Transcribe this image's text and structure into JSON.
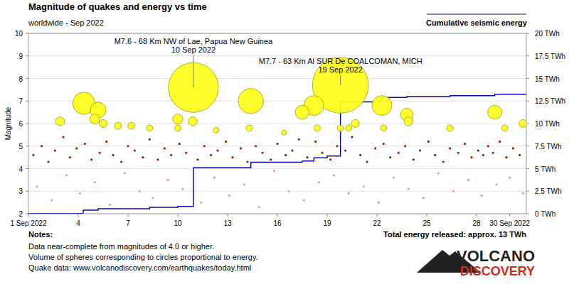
{
  "chart_data": {
    "type": "scatter",
    "title": "Magnitude of quakes and energy vs time",
    "subtitle": "worldwide - Sep 2022",
    "y_label": "Magnitude",
    "xlim": [
      1,
      31
    ],
    "xticks": [
      {
        "value": 1,
        "label": "1 Sep 2022"
      },
      4,
      7,
      10,
      13,
      16,
      19,
      22,
      25,
      28,
      {
        "value": 30,
        "label": "30 Sep 2022"
      }
    ],
    "ylim": [
      2,
      10
    ],
    "yticks": [
      2,
      3,
      4,
      5,
      6,
      7,
      8,
      9,
      10
    ],
    "y2lim": [
      0,
      20
    ],
    "y2ticks": [
      {
        "value": 0,
        "label": "0 TWh"
      },
      {
        "value": 2.5,
        "label": "2.5 TWh"
      },
      {
        "value": 5,
        "label": "5 TWh"
      },
      {
        "value": 7.5,
        "label": "7.5 TWh"
      },
      {
        "value": 10,
        "label": "10 TWh"
      },
      {
        "value": 12.5,
        "label": "12.5 TWh"
      },
      {
        "value": 15,
        "label": "15 TWh"
      },
      {
        "value": 17.5,
        "label": "17.5 TWh"
      },
      {
        "value": 20,
        "label": "20 TWh"
      }
    ],
    "grid": true,
    "legend": "top-right",
    "series": [
      {
        "type": "scatter",
        "marker": "circle",
        "color": "#ffff1a",
        "x": [
          2.9,
          4.34,
          5.0,
          5.2,
          5.5,
          6.4,
          7.2,
          8.3,
          10.0,
          10.0,
          10.94,
          10.9,
          12.3,
          14.3,
          14.4,
          16.4,
          17.5,
          18.2,
          18.4,
          19.8,
          19.8,
          20.3,
          20.7,
          22.3,
          22.4,
          23.8,
          23.9,
          26.4,
          29.1,
          29.7,
          30.8
        ],
        "values": [
          6.1,
          6.9,
          6.2,
          6.6,
          6.0,
          5.9,
          5.9,
          5.8,
          6.2,
          5.8,
          7.6,
          6.1,
          5.7,
          5.8,
          7.0,
          5.6,
          6.5,
          6.8,
          5.8,
          7.7,
          5.8,
          5.8,
          6.0,
          6.8,
          5.8,
          6.4,
          6.1,
          5.8,
          6.5,
          5.8,
          6.0
        ],
        "sizes": [
          0.03,
          0.48,
          0.043,
          0.17,
          0.021,
          0.015,
          0.015,
          0.011,
          0.043,
          0.011,
          5.38,
          0.03,
          0.0076,
          0.011,
          0.68,
          0.0054,
          0.12,
          0.34,
          0.011,
          7.6,
          0.011,
          0.011,
          0.021,
          0.34,
          0.011,
          0.085,
          0.03,
          0.011,
          0.12,
          0.011,
          0.021
        ]
      },
      {
        "type": "scatter",
        "marker": "dot",
        "color": "#8b2000",
        "x": [
          1.3,
          1.8,
          2.2,
          2.6,
          3.1,
          3.5,
          3.9,
          4.4,
          4.8,
          5.3,
          5.7,
          6.1,
          6.6,
          7.0,
          7.4,
          7.9,
          8.3,
          8.8,
          9.2,
          9.6,
          10.1,
          10.5,
          11.2,
          11.6,
          12.0,
          12.4,
          12.9,
          13.3,
          13.8,
          14.2,
          14.7,
          15.1,
          15.6,
          16.0,
          16.5,
          16.9,
          17.3,
          17.8,
          18.3,
          18.7,
          19.2,
          19.6,
          20.1,
          20.5,
          21.0,
          21.4,
          21.9,
          22.4,
          22.8,
          23.3,
          23.7,
          24.2,
          24.6,
          25.1,
          25.5,
          26.0,
          26.4,
          26.9,
          27.3,
          27.7,
          28.1,
          28.4,
          28.7,
          29.0,
          29.4,
          29.8,
          30.2,
          30.6
        ],
        "values": [
          4.6,
          5.0,
          4.3,
          4.8,
          5.4,
          4.5,
          4.9,
          5.1,
          4.4,
          4.7,
          5.2,
          4.6,
          4.3,
          5.0,
          4.8,
          4.5,
          5.3,
          4.4,
          4.9,
          4.6,
          5.1,
          4.7,
          4.4,
          5.0,
          4.6,
          4.8,
          5.2,
          4.5,
          4.9,
          4.3,
          5.0,
          4.7,
          4.4,
          5.1,
          4.6,
          4.8,
          5.3,
          4.5,
          5.2,
          4.7,
          4.4,
          5.0,
          4.8,
          5.4,
          4.6,
          4.3,
          4.9,
          5.1,
          4.5,
          4.7,
          5.0,
          4.4,
          4.8,
          5.2,
          4.6,
          4.3,
          4.9,
          4.7,
          5.1,
          4.5,
          4.8,
          4.6,
          5.0,
          4.7,
          5.2,
          4.5,
          4.9,
          4.6
        ]
      },
      {
        "type": "scatter",
        "marker": "dot",
        "color": "#e3a08c",
        "x": [
          1.5,
          2.4,
          3.3,
          4.1,
          5.0,
          5.9,
          6.8,
          7.7,
          8.5,
          9.4,
          10.3,
          11.4,
          12.2,
          13.1,
          14.0,
          14.9,
          15.8,
          16.7,
          17.6,
          18.5,
          19.4,
          20.3,
          21.2,
          22.1,
          23.0,
          23.9,
          24.8,
          25.7,
          26.6,
          27.5,
          28.3,
          29.2,
          30.0,
          30.8
        ],
        "values": [
          3.2,
          2.6,
          3.7,
          2.9,
          3.4,
          2.4,
          3.8,
          3.0,
          2.7,
          3.5,
          3.1,
          2.5,
          3.6,
          2.8,
          3.3,
          2.3,
          3.9,
          3.0,
          2.6,
          3.4,
          3.7,
          2.9,
          3.2,
          2.5,
          3.6,
          3.1,
          2.7,
          3.8,
          3.0,
          3.5,
          2.8,
          3.3,
          3.6,
          2.9
        ]
      },
      {
        "type": "line",
        "line_style": "step",
        "axis": "y2",
        "name": "Cumulative seismic energy",
        "color": "#0a0a9c",
        "x": [
          1,
          4.3,
          5.2,
          8.3,
          10.0,
          10.94,
          14.4,
          17.5,
          18.2,
          19.0,
          19.8,
          22.3,
          23.8,
          26.4,
          29.1,
          31
        ],
        "values": [
          0,
          0.4,
          0.55,
          0.7,
          0.8,
          5.1,
          5.7,
          5.85,
          6.2,
          6.4,
          12.4,
          12.9,
          13.0,
          13.1,
          13.25,
          13.3
        ]
      }
    ],
    "annotations": [
      {
        "text": "M7.6 - 68 Km NW of Lae, Papua New Guinea",
        "date": "10 Sep 2022",
        "x": 10.94,
        "y": 7.6
      },
      {
        "text": "M7.7 - 63 Km Al SUR De COALCOMAN, MICH",
        "date": "19 Sep 2022",
        "x": 19.8,
        "y": 7.7
      }
    ],
    "total_energy": "Total energy released: approx. 13 TWh",
    "notes_title": "Notes:",
    "notes": [
      "Data near-complete from magnitudes of 4.0 or higher.",
      "Volume of spheres corresponding to circles proportional to energy.",
      "Quake data: www.volcanodiscovery.com/earthquakes/today.html"
    ],
    "logo": [
      "VOLCANO",
      "DISCOVERY"
    ]
  }
}
